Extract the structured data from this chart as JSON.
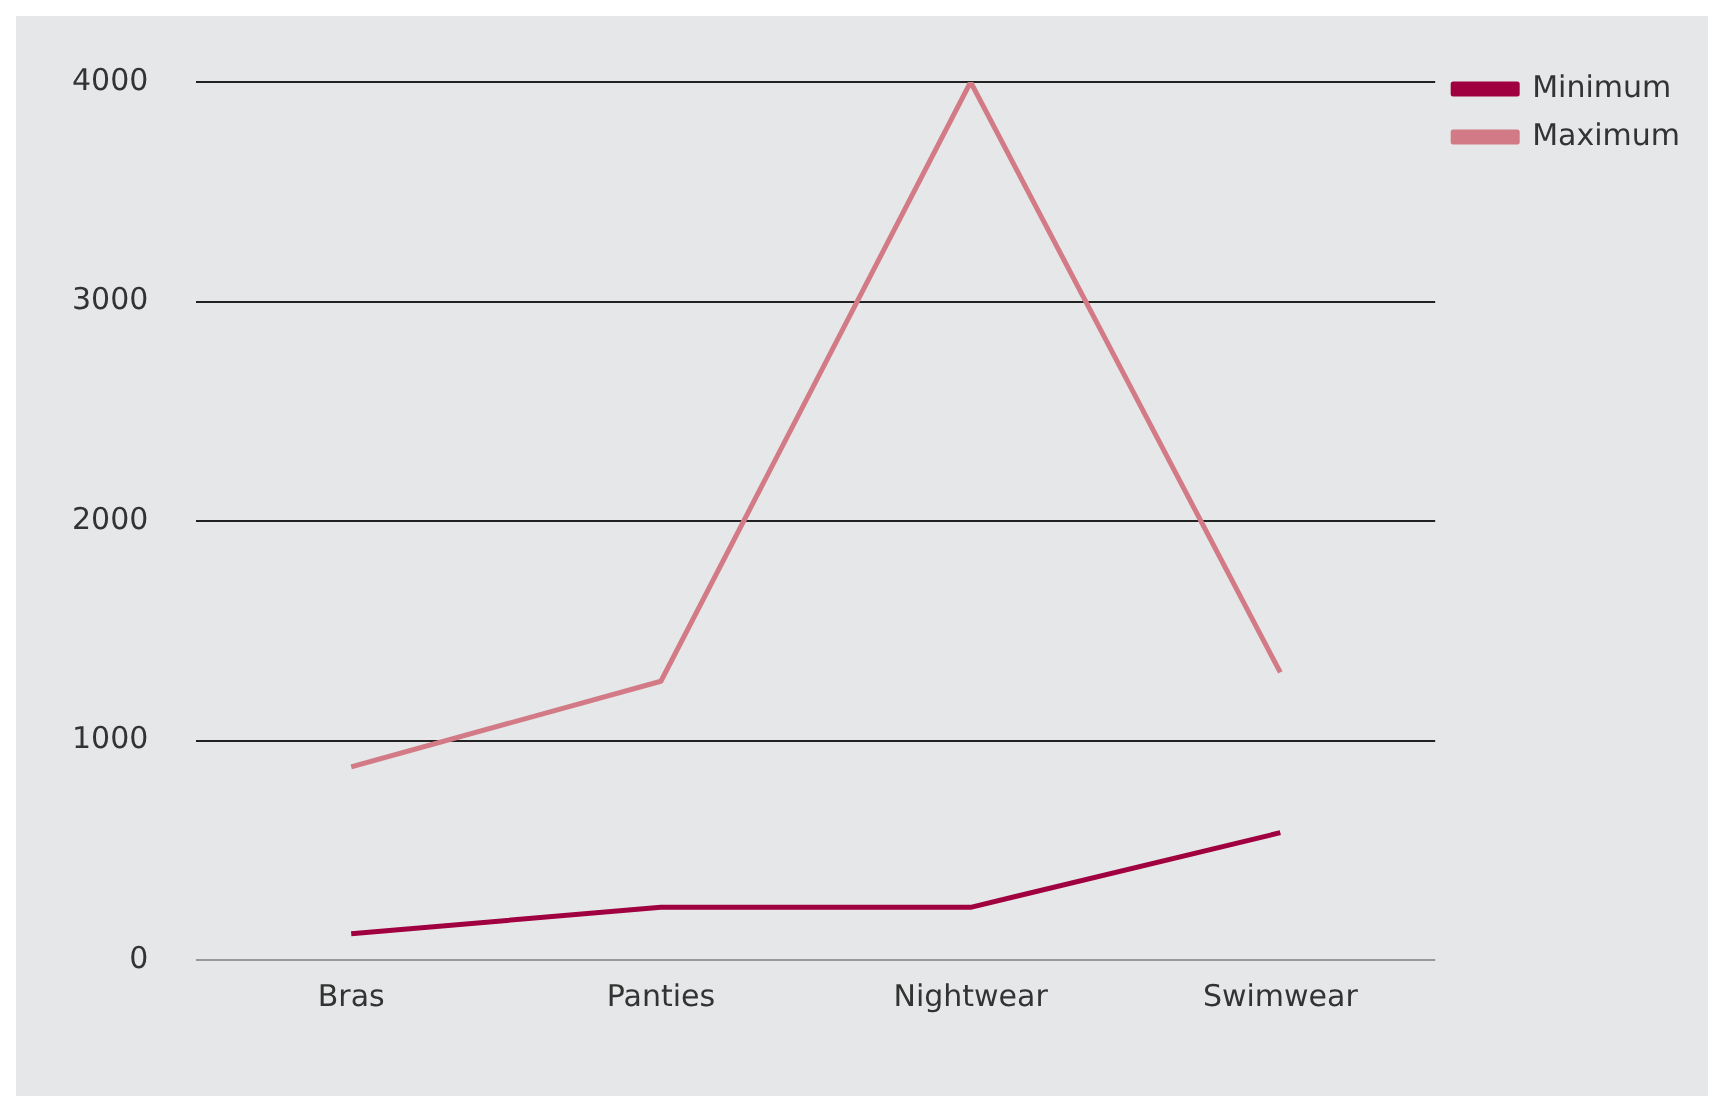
{
  "chart_data": {
    "type": "line",
    "categories": [
      "Bras",
      "Panties",
      "Nightwear",
      "Swimwear"
    ],
    "series": [
      {
        "name": "Minimum",
        "color": "#a0003f",
        "values": [
          120,
          240,
          240,
          580
        ]
      },
      {
        "name": "Maximum",
        "color": "#d27a86",
        "values": [
          880,
          1270,
          4000,
          1310
        ]
      }
    ],
    "ylim": [
      0,
      4000
    ],
    "yticks": [
      0,
      1000,
      2000,
      3000,
      4000
    ],
    "grid": "y",
    "legend": "top right",
    "marker": "none",
    "line_style": "solid"
  }
}
